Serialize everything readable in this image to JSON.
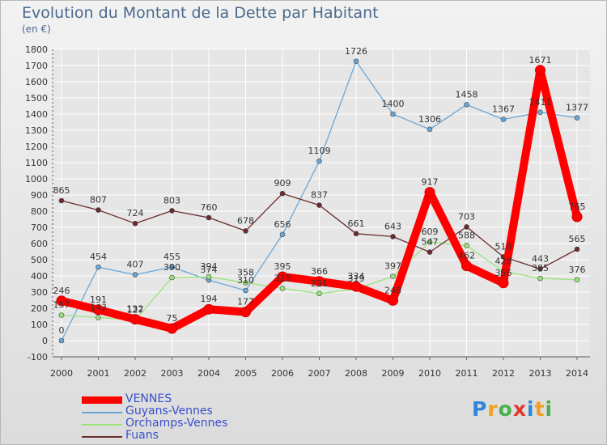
{
  "header": {
    "title": "Evolution du Montant de la Dette par Habitant",
    "unit": "(en €)"
  },
  "logo": {
    "text": "Proxiti"
  },
  "chart_data": {
    "type": "line",
    "title": "Evolution du Montant de la Dette par Habitant",
    "ylabel": "(en €)",
    "xlabel": "",
    "x": [
      "2000",
      "2001",
      "2002",
      "2003",
      "2004",
      "2005",
      "2006",
      "2007",
      "2008",
      "2009",
      "2010",
      "2011",
      "2012",
      "2013",
      "2014"
    ],
    "ylim": [
      -100,
      1800
    ],
    "yticks": [
      "-100",
      "0",
      "100",
      "200",
      "300",
      "400",
      "500",
      "600",
      "700",
      "800",
      "900",
      "1000",
      "1100",
      "1200",
      "1300",
      "1400",
      "1500",
      "1600",
      "1700",
      "1800"
    ],
    "grid": true,
    "legend_position": "bottom-left",
    "series": [
      {
        "name": "VENNES",
        "color": "#ff0000",
        "values": [
          246,
          191,
          132,
          75,
          194,
          177,
          395,
          366,
          334,
          248,
          917,
          462,
          356,
          1671,
          765
        ]
      },
      {
        "name": "Guyans-Vennes",
        "color": "#6aa6d6",
        "values": [
          0,
          454,
          407,
          455,
          374,
          310,
          656,
          1109,
          1726,
          1400,
          1306,
          1458,
          1367,
          1411,
          1377
        ]
      },
      {
        "name": "Orchamps-Vennes",
        "color": "#9be37a",
        "values": [
          157,
          143,
          127,
          390,
          394,
          358,
          323,
          291,
          319,
          397,
          609,
          588,
          428,
          385,
          376
        ]
      },
      {
        "name": "Fuans",
        "color": "#6b2c2c",
        "values": [
          865,
          807,
          724,
          803,
          760,
          678,
          909,
          837,
          661,
          643,
          547,
          703,
          518,
          443,
          565
        ]
      }
    ]
  }
}
